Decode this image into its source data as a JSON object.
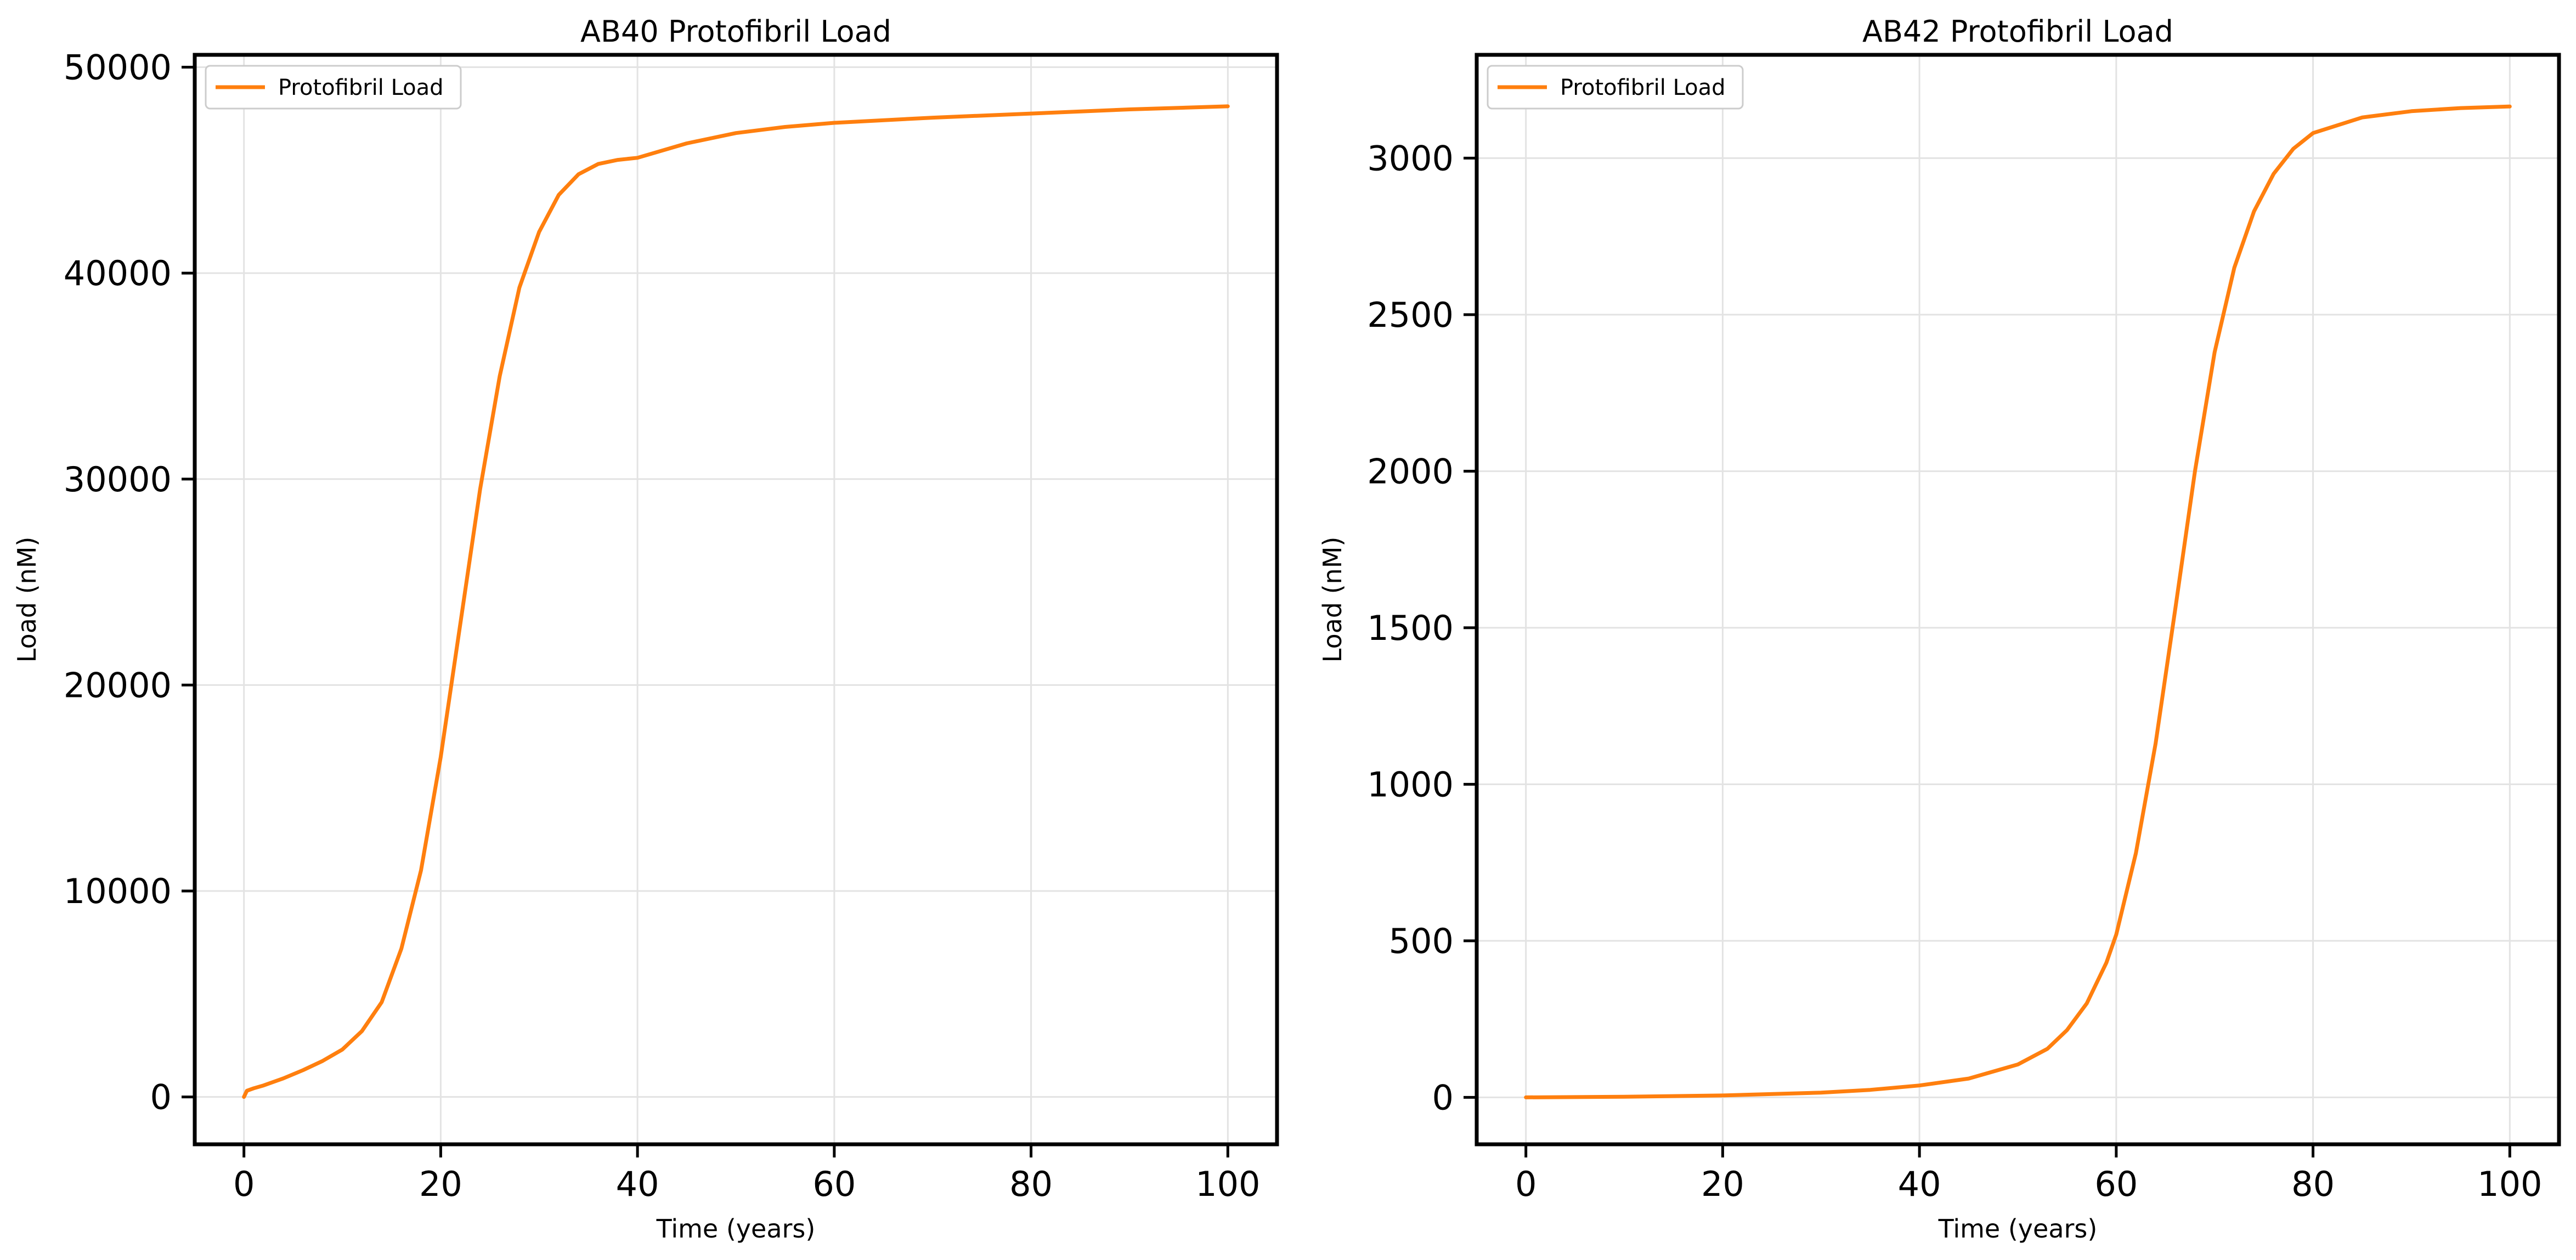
{
  "chart_data": [
    {
      "type": "line",
      "title": "AB40 Protofibril Load",
      "xlabel": "Time (years)",
      "ylabel": "Load (nM)",
      "xlim": [
        -5,
        105
      ],
      "ylim": [
        -2300,
        50600
      ],
      "xticks": [
        0,
        20,
        40,
        60,
        80,
        100
      ],
      "yticks": [
        0,
        10000,
        20000,
        30000,
        40000,
        50000
      ],
      "xtick_labels": [
        "0",
        "20",
        "40",
        "60",
        "80",
        "100"
      ],
      "ytick_labels": [
        "0",
        "10000",
        "20000",
        "30000",
        "40000",
        "50000"
      ],
      "grid": true,
      "legend_position": "top-left",
      "series": [
        {
          "name": "Protofibril Load",
          "color": "#ff7f0e",
          "x": [
            0,
            0.3,
            1,
            2,
            4,
            6,
            8,
            10,
            12,
            14,
            16,
            18,
            20,
            22,
            24,
            26,
            28,
            30,
            32,
            34,
            36,
            38,
            40,
            45,
            50,
            55,
            60,
            70,
            80,
            90,
            100
          ],
          "y": [
            0,
            300,
            420,
            560,
            900,
            1300,
            1750,
            2300,
            3200,
            4600,
            7200,
            11000,
            16500,
            23000,
            29500,
            35000,
            39300,
            42000,
            43800,
            44800,
            45300,
            45500,
            45600,
            46300,
            46800,
            47100,
            47300,
            47550,
            47750,
            47950,
            48100
          ]
        }
      ]
    },
    {
      "type": "line",
      "title": "AB42 Protofibril Load",
      "xlabel": "Time (years)",
      "ylabel": "Load (nM)",
      "xlim": [
        -5,
        105
      ],
      "ylim": [
        -150,
        3330
      ],
      "xticks": [
        0,
        20,
        40,
        60,
        80,
        100
      ],
      "yticks": [
        0,
        500,
        1000,
        1500,
        2000,
        2500,
        3000
      ],
      "xtick_labels": [
        "0",
        "20",
        "40",
        "60",
        "80",
        "100"
      ],
      "ytick_labels": [
        "0",
        "500",
        "1000",
        "1500",
        "2000",
        "2500",
        "3000"
      ],
      "grid": true,
      "legend_position": "top-left",
      "series": [
        {
          "name": "Protofibril Load",
          "color": "#ff7f0e",
          "x": [
            0,
            10,
            20,
            30,
            35,
            40,
            45,
            50,
            53,
            55,
            57,
            59,
            60,
            62,
            64,
            66,
            68,
            70,
            72,
            74,
            76,
            78,
            80,
            85,
            90,
            95,
            100
          ],
          "y": [
            0,
            2,
            6,
            15,
            24,
            38,
            60,
            105,
            155,
            215,
            300,
            430,
            520,
            780,
            1130,
            1560,
            2000,
            2380,
            2650,
            2830,
            2950,
            3030,
            3080,
            3130,
            3150,
            3160,
            3165
          ]
        }
      ]
    }
  ]
}
